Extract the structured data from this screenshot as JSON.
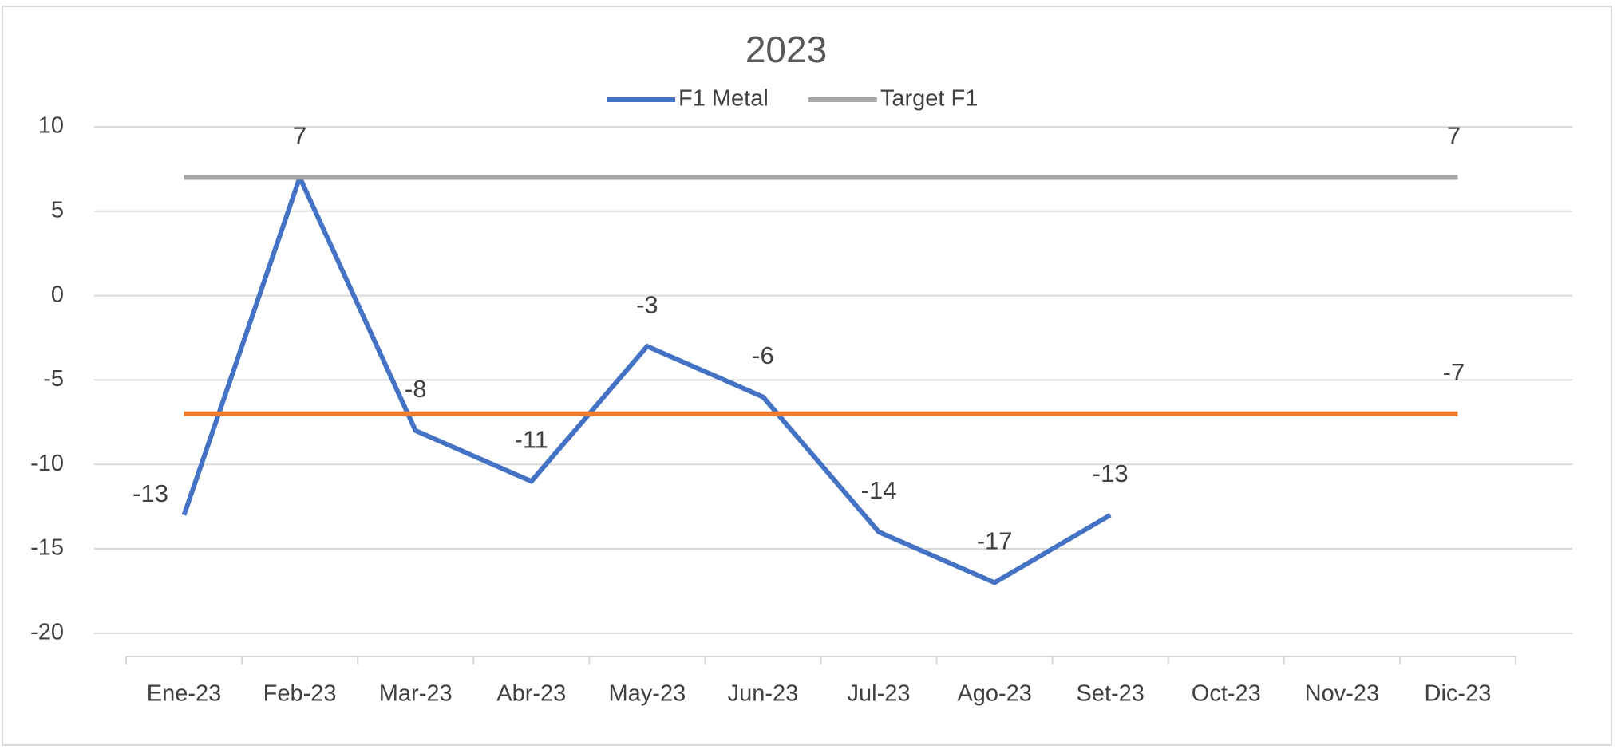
{
  "chart_data": {
    "type": "line",
    "title": "2023",
    "categories": [
      "Ene-23",
      "Feb-23",
      "Mar-23",
      "Abr-23",
      "May-23",
      "Jun-23",
      "Jul-23",
      "Ago-23",
      "Set-23",
      "Oct-23",
      "Nov-23",
      "Dic-23"
    ],
    "series": [
      {
        "name": "F1 Metal",
        "color": "#4472c4",
        "data_labels": "all",
        "values": [
          -13,
          7,
          -8,
          -11,
          -3,
          -6,
          -14,
          -17,
          -13,
          null,
          null,
          null
        ]
      },
      {
        "name": "Target F1",
        "color": "#a5a5a5",
        "data_labels": "last",
        "values": [
          7,
          7,
          7,
          7,
          7,
          7,
          7,
          7,
          7,
          7,
          7,
          7
        ]
      },
      {
        "color": "#ed7d31",
        "data_labels": "last",
        "values": [
          -7,
          -7,
          -7,
          -7,
          -7,
          -7,
          -7,
          -7,
          -7,
          -7,
          -7,
          -7
        ]
      }
    ],
    "ylim": [
      -21,
      10
    ],
    "yticks": [
      -20,
      -15,
      -10,
      -5,
      0,
      5,
      10
    ],
    "grid": true
  }
}
